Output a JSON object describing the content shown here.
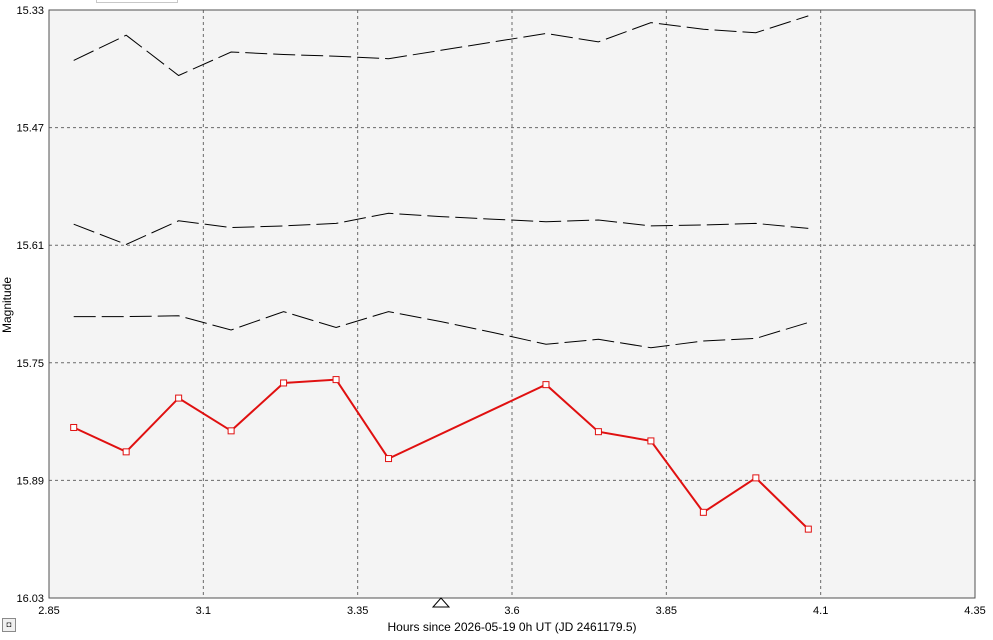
{
  "chart_data": {
    "type": "line",
    "xlabel": "Hours since 2026-05-19 0h UT (JD 2461179.5)",
    "ylabel": "Magnitude",
    "xlim": [
      2.85,
      4.35
    ],
    "ylim": [
      15.33,
      16.03
    ],
    "y_inverted": true,
    "x_ticks": [
      "2.85",
      "3.1",
      "3.35",
      "3.6",
      "3.85",
      "4.1",
      "4.35"
    ],
    "y_ticks": [
      "15.33",
      "15.47",
      "15.61",
      "15.75",
      "15.89",
      "16.03"
    ],
    "grid": true,
    "grid_style": "dashed",
    "background": "#f4f4f4",
    "series": [
      {
        "style": "dashed",
        "color": "#000000",
        "markers": false,
        "x": [
          2.89,
          2.975,
          3.06,
          3.145,
          3.23,
          3.315,
          3.4,
          3.485,
          3.57,
          3.655,
          3.74,
          3.825,
          3.91,
          3.995,
          4.08
        ],
        "y": [
          15.39,
          15.36,
          15.408,
          15.38,
          15.383,
          15.385,
          15.388,
          15.378,
          15.368,
          15.358,
          15.368,
          15.345,
          15.353,
          15.357,
          15.337
        ]
      },
      {
        "style": "dashed",
        "color": "#000000",
        "markers": false,
        "x": [
          2.89,
          2.975,
          3.06,
          3.145,
          3.23,
          3.315,
          3.4,
          3.485,
          3.57,
          3.655,
          3.74,
          3.825,
          3.91,
          3.995,
          4.08
        ],
        "y": [
          15.585,
          15.609,
          15.581,
          15.589,
          15.587,
          15.584,
          15.572,
          15.576,
          15.579,
          15.582,
          15.58,
          15.587,
          15.586,
          15.584,
          15.59
        ]
      },
      {
        "style": "dashed",
        "color": "#000000",
        "markers": false,
        "x": [
          2.89,
          2.975,
          3.06,
          3.145,
          3.23,
          3.315,
          3.4,
          3.485,
          3.57,
          3.655,
          3.74,
          3.825,
          3.91,
          3.995,
          4.08
        ],
        "y": [
          15.695,
          15.695,
          15.694,
          15.711,
          15.689,
          15.708,
          15.689,
          15.701,
          15.714,
          15.728,
          15.722,
          15.732,
          15.724,
          15.721,
          15.702
        ]
      },
      {
        "style": "solid",
        "color": "#e01010",
        "markers": true,
        "marker": "square",
        "x": [
          2.89,
          2.975,
          3.06,
          3.145,
          3.23,
          3.315,
          3.4,
          3.655,
          3.74,
          3.825,
          3.91,
          3.995,
          4.08
        ],
        "y": [
          15.827,
          15.856,
          15.792,
          15.831,
          15.774,
          15.77,
          15.864,
          15.776,
          15.832,
          15.843,
          15.928,
          15.887,
          15.948
        ]
      }
    ]
  }
}
